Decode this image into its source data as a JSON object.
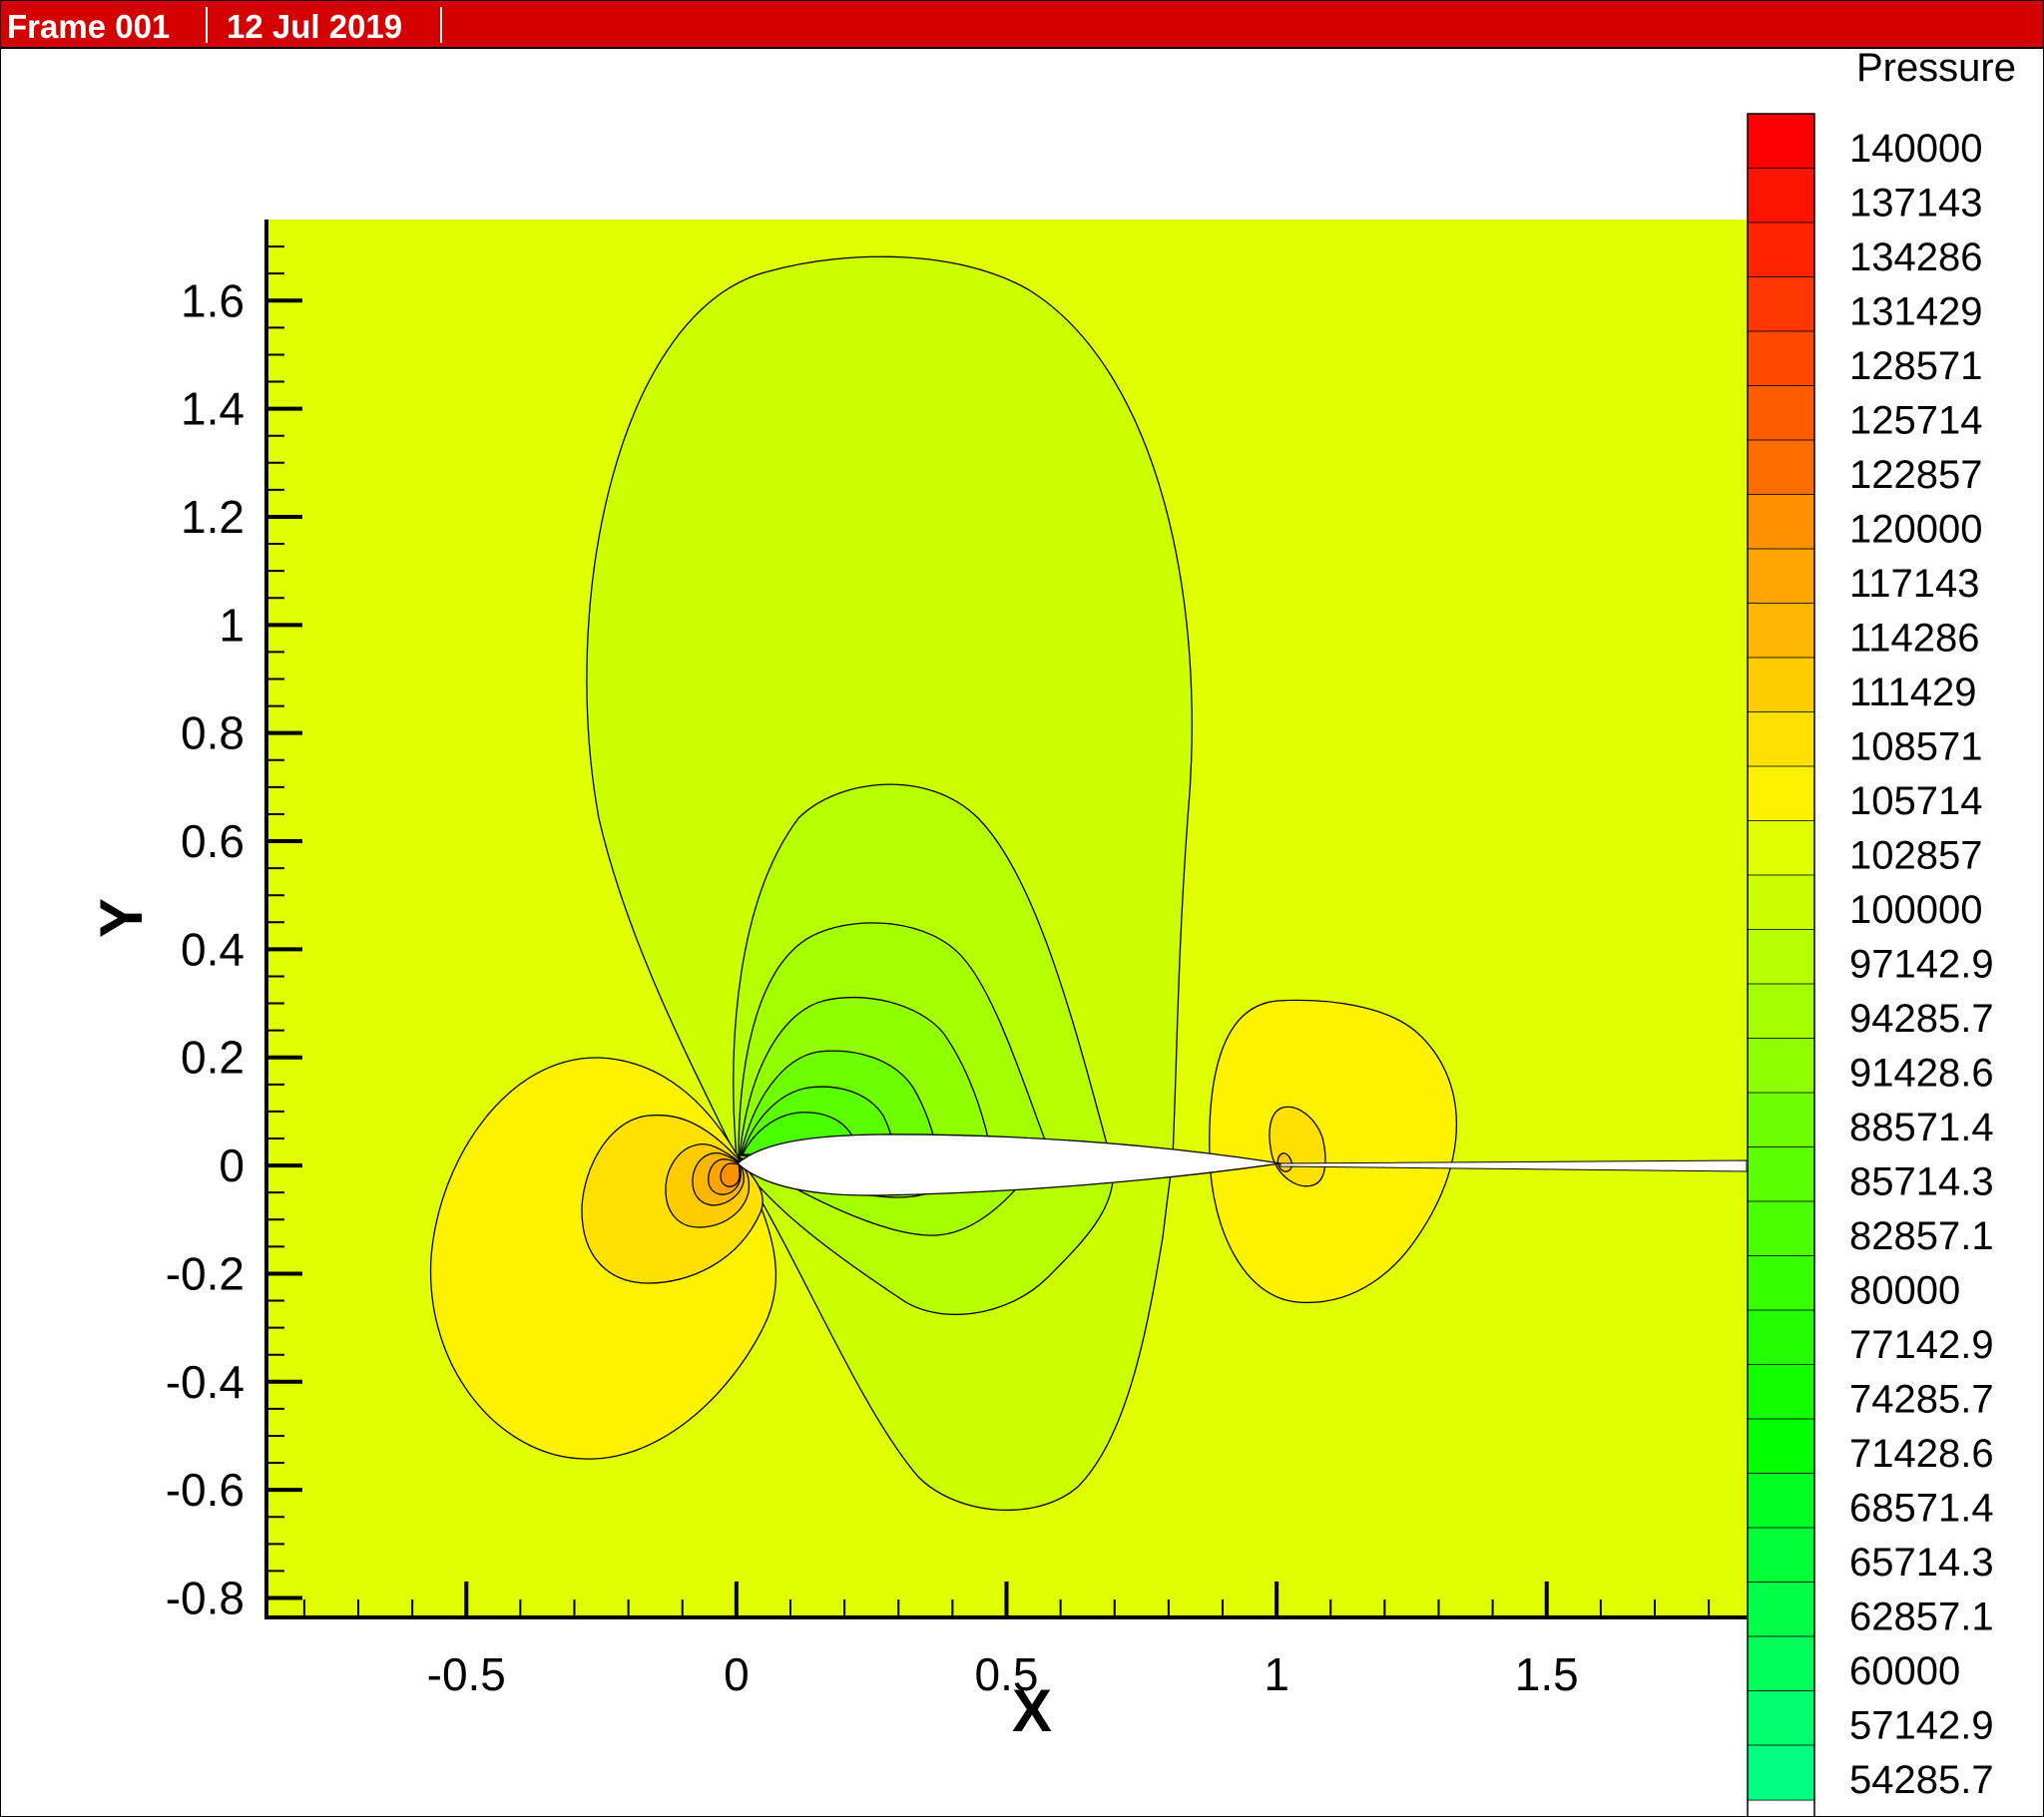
{
  "header": {
    "frame_label": "Frame 001",
    "date_label": "12 Jul 2019"
  },
  "colors": {
    "header_bg": "#d40000",
    "background_field": "#e0ff00",
    "body_fill": "#ffffff"
  },
  "chart_data": {
    "type": "contour",
    "variable": "Pressure",
    "xlabel": "X",
    "ylabel": "Y",
    "xlim": [
      -0.87,
      1.87
    ],
    "ylim": [
      -0.836,
      1.75
    ],
    "x_ticks": [
      -0.5,
      0,
      0.5,
      1,
      1.5
    ],
    "x_tick_labels": [
      "-0.5",
      "0",
      "0.5",
      "1",
      "1.5"
    ],
    "y_ticks": [
      1.6,
      1.4,
      1.2,
      1,
      0.8,
      0.6,
      0.4,
      0.2,
      0,
      -0.2,
      -0.4,
      -0.6,
      -0.8
    ],
    "y_tick_labels": [
      "1.6",
      "1.4",
      "1.2",
      "1",
      "0.8",
      "0.6",
      "0.4",
      "0.2",
      "0",
      "-0.2",
      "-0.4",
      "-0.6",
      "-0.8"
    ],
    "legend": {
      "title": "Pressure",
      "placement": "right",
      "levels": [
        {
          "label": "140000",
          "color": "#ff0000"
        },
        {
          "label": "137143",
          "color": "#ff1200"
        },
        {
          "label": "134286",
          "color": "#ff2400"
        },
        {
          "label": "131429",
          "color": "#ff3600"
        },
        {
          "label": "128571",
          "color": "#ff4900"
        },
        {
          "label": "125714",
          "color": "#ff5b00"
        },
        {
          "label": "122857",
          "color": "#ff6d00"
        },
        {
          "label": "120000",
          "color": "#ff9000"
        },
        {
          "label": "117143",
          "color": "#ffa400"
        },
        {
          "label": "114286",
          "color": "#ffb600"
        },
        {
          "label": "111429",
          "color": "#ffcc00"
        },
        {
          "label": "108571",
          "color": "#ffe000"
        },
        {
          "label": "105714",
          "color": "#fff200"
        },
        {
          "label": "102857",
          "color": "#e0ff00"
        },
        {
          "label": "100000",
          "color": "#ccff00"
        },
        {
          "label": "97142.9",
          "color": "#b6ff00"
        },
        {
          "label": "94285.7",
          "color": "#a4ff00"
        },
        {
          "label": "91428.6",
          "color": "#90ff00"
        },
        {
          "label": "88571.4",
          "color": "#6dff00"
        },
        {
          "label": "85714.3",
          "color": "#5bff00"
        },
        {
          "label": "82857.1",
          "color": "#49ff00"
        },
        {
          "label": "80000",
          "color": "#36ff00"
        },
        {
          "label": "77142.9",
          "color": "#24ff00"
        },
        {
          "label": "74285.7",
          "color": "#12ff00"
        },
        {
          "label": "71428.6",
          "color": "#00ff00"
        },
        {
          "label": "68571.4",
          "color": "#00ff24"
        },
        {
          "label": "65714.3",
          "color": "#00ff36"
        },
        {
          "label": "62857.1",
          "color": "#00ff49"
        },
        {
          "label": "60000",
          "color": "#00ff5b"
        },
        {
          "label": "57142.9",
          "color": "#00ff6d"
        },
        {
          "label": "54285.7",
          "color": "#00ff80"
        }
      ]
    }
  }
}
